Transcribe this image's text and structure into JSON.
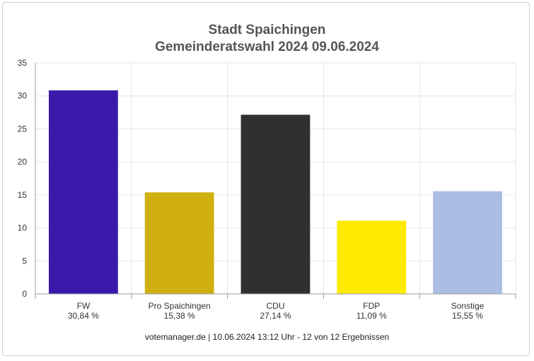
{
  "chart_data": {
    "type": "bar",
    "title_line1": "Stadt Spaichingen",
    "title_line2": "Gemeinderatswahl 2024 09.06.2024",
    "categories": [
      "FW",
      "Pro Spaichingen",
      "CDU",
      "FDP",
      "Sonstige"
    ],
    "values": [
      30.84,
      15.38,
      27.14,
      11.09,
      15.55
    ],
    "value_labels": [
      "30,84 %",
      "15,38 %",
      "27,14 %",
      "11,09 %",
      "15,55 %"
    ],
    "colors": [
      "#3b1aab",
      "#d0b011",
      "#31302e",
      "#ffeb00",
      "#abbde3"
    ],
    "yticks": [
      0,
      5,
      10,
      15,
      20,
      25,
      30,
      35
    ],
    "ylim": [
      0,
      35
    ],
    "grid": true,
    "legend": "none"
  },
  "footer": "votemanager.de | 10.06.2024 13:12 Uhr - 12 von 12 Ergebnissen"
}
